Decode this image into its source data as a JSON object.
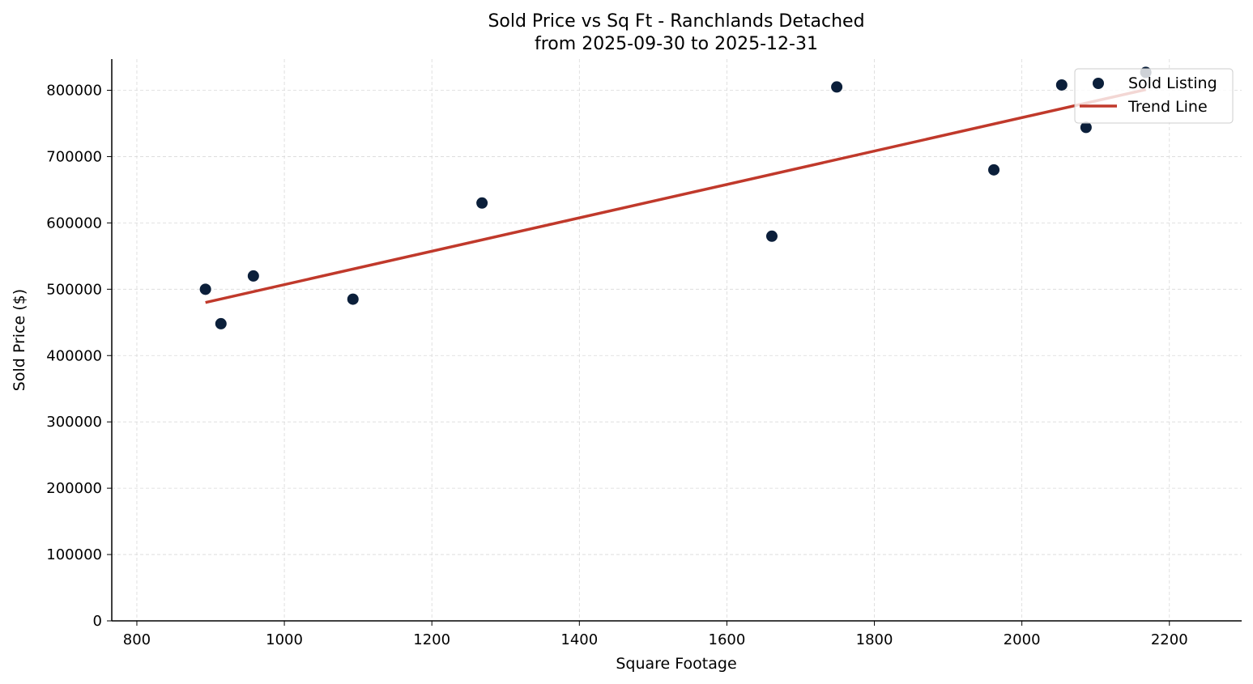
{
  "chart_data": {
    "type": "scatter",
    "title": "Sold Price vs Sq Ft - Ranchlands Detached",
    "subtitle": "from 2025-09-30 to 2025-12-31",
    "xlabel": "Square Footage",
    "ylabel": "Sold Price ($)",
    "xlim": [
      766,
      2298
    ],
    "ylim": [
      0,
      847000
    ],
    "xticks": [
      800,
      1000,
      1200,
      1400,
      1600,
      1800,
      2000,
      2200
    ],
    "yticks": [
      0,
      100000,
      200000,
      300000,
      400000,
      500000,
      600000,
      700000,
      800000
    ],
    "grid": true,
    "legend_position": "top-right",
    "series": [
      {
        "name": "Sold Listing",
        "type": "scatter",
        "color": "#0b1f3a",
        "points": [
          [
            893,
            500000
          ],
          [
            914,
            448000
          ],
          [
            958,
            520000
          ],
          [
            1093,
            485000
          ],
          [
            1268,
            630000
          ],
          [
            1661,
            580000
          ],
          [
            1749,
            805000
          ],
          [
            1962,
            680000
          ],
          [
            2054,
            808000
          ],
          [
            2087,
            744000
          ],
          [
            2168,
            827000
          ]
        ]
      },
      {
        "name": "Trend Line",
        "type": "line",
        "color": "#c0392b",
        "points": [
          [
            893,
            480000
          ],
          [
            2168,
            801000
          ]
        ]
      }
    ]
  }
}
